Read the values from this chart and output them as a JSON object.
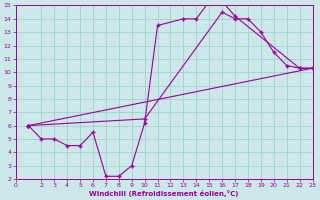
{
  "background_color": "#cce8e8",
  "grid_color": "#99cccc",
  "line_color": "#990099",
  "marker": "+",
  "markersize": 3.5,
  "markeredgewidth": 1.0,
  "linewidth": 0.8,
  "xlabel": "Windchill (Refroidissement éolien,°C)",
  "xlim": [
    0,
    23
  ],
  "ylim": [
    2,
    15
  ],
  "yticks": [
    2,
    3,
    4,
    5,
    6,
    7,
    8,
    9,
    10,
    11,
    12,
    13,
    14,
    15
  ],
  "xticks": [
    0,
    2,
    3,
    4,
    5,
    6,
    7,
    8,
    9,
    10,
    11,
    12,
    13,
    14,
    15,
    16,
    17,
    18,
    19,
    20,
    21,
    22,
    23
  ],
  "line1_x": [
    1,
    2,
    3,
    4,
    5,
    6,
    7,
    8,
    9,
    10,
    11,
    13,
    14,
    15,
    16,
    17,
    22,
    23
  ],
  "line1_y": [
    6.0,
    5.0,
    5.0,
    4.5,
    4.5,
    5.5,
    2.2,
    2.2,
    3.0,
    6.2,
    13.5,
    14.0,
    14.0,
    15.3,
    15.3,
    14.2,
    10.3,
    10.3
  ],
  "line2_x": [
    1,
    23
  ],
  "line2_y": [
    6.0,
    10.3
  ],
  "line3_x": [
    1,
    10,
    16,
    17,
    18,
    19,
    20,
    21,
    22,
    23
  ],
  "line3_y": [
    6.0,
    6.5,
    14.5,
    14.0,
    14.0,
    13.0,
    11.5,
    10.5,
    10.3,
    10.3
  ]
}
